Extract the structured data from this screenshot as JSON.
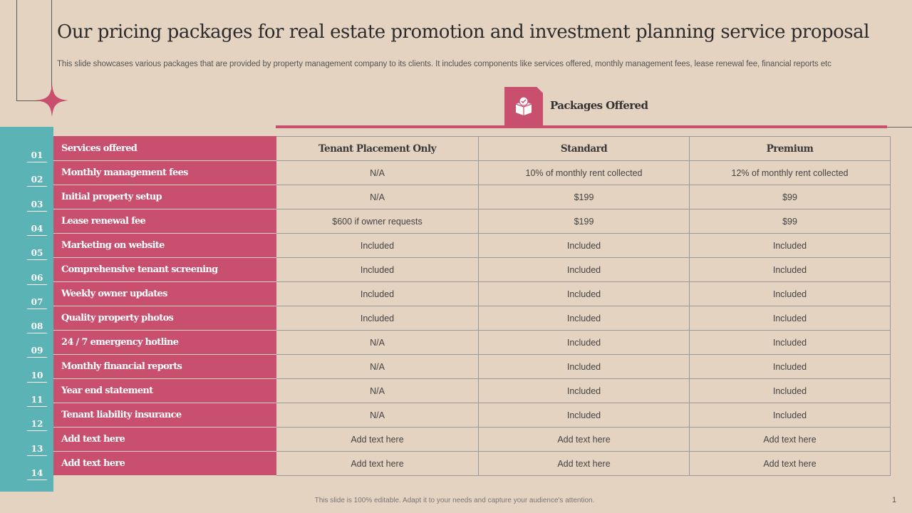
{
  "title": "Our pricing packages for real estate promotion and investment planning service proposal",
  "subtitle": "This slide showcases various packages that are provided by property management company to its clients. It includes components like services offered, monthly management fees, lease renewal fee, financial reports etc",
  "packages_label": "Packages Offered",
  "packages_icon": "package-box-icon",
  "colors": {
    "accent": "#c84f6e",
    "teal": "#5bb3b5",
    "background": "#e5d3c2"
  },
  "table": {
    "header": [
      "Services offered",
      "Tenant Placement Only",
      "Standard",
      "Premium"
    ],
    "rows": [
      {
        "num": "02",
        "label": "Monthly management fees",
        "c1": "N/A",
        "c2": "10% of monthly rent collected",
        "c3": "12% of monthly rent collected"
      },
      {
        "num": "03",
        "label": "Initial property setup",
        "c1": "N/A",
        "c2": "$199",
        "c3": "$99"
      },
      {
        "num": "04",
        "label": "Lease renewal fee",
        "c1": "$600 if owner requests",
        "c2": "$199",
        "c3": "$99"
      },
      {
        "num": "05",
        "label": "Marketing on website",
        "c1": "Included",
        "c2": "Included",
        "c3": "Included"
      },
      {
        "num": "06",
        "label": "Comprehensive tenant screening",
        "c1": "Included",
        "c2": "Included",
        "c3": "Included"
      },
      {
        "num": "07",
        "label": "Weekly owner updates",
        "c1": "Included",
        "c2": "Included",
        "c3": "Included"
      },
      {
        "num": "08",
        "label": "Quality property photos",
        "c1": "Included",
        "c2": "Included",
        "c3": "Included"
      },
      {
        "num": "09",
        "label": "24 / 7 emergency hotline",
        "c1": "N/A",
        "c2": "Included",
        "c3": "Included"
      },
      {
        "num": "10",
        "label": "Monthly financial reports",
        "c1": "N/A",
        "c2": "Included",
        "c3": "Included"
      },
      {
        "num": "11",
        "label": "Year end statement",
        "c1": "N/A",
        "c2": "Included",
        "c3": "Included"
      },
      {
        "num": "12",
        "label": "Tenant liability insurance",
        "c1": "N/A",
        "c2": "Included",
        "c3": "Included"
      },
      {
        "num": "13",
        "label": "Add text here",
        "c1": "Add text here",
        "c2": "Add text here",
        "c3": "Add text here"
      },
      {
        "num": "14",
        "label": "Add text here",
        "c1": "Add text here",
        "c2": "Add text here",
        "c3": "Add text here"
      }
    ],
    "header_num": "01"
  },
  "footer": "This slide is 100% editable. Adapt it to your needs and capture your audience's attention.",
  "page_number": "1"
}
